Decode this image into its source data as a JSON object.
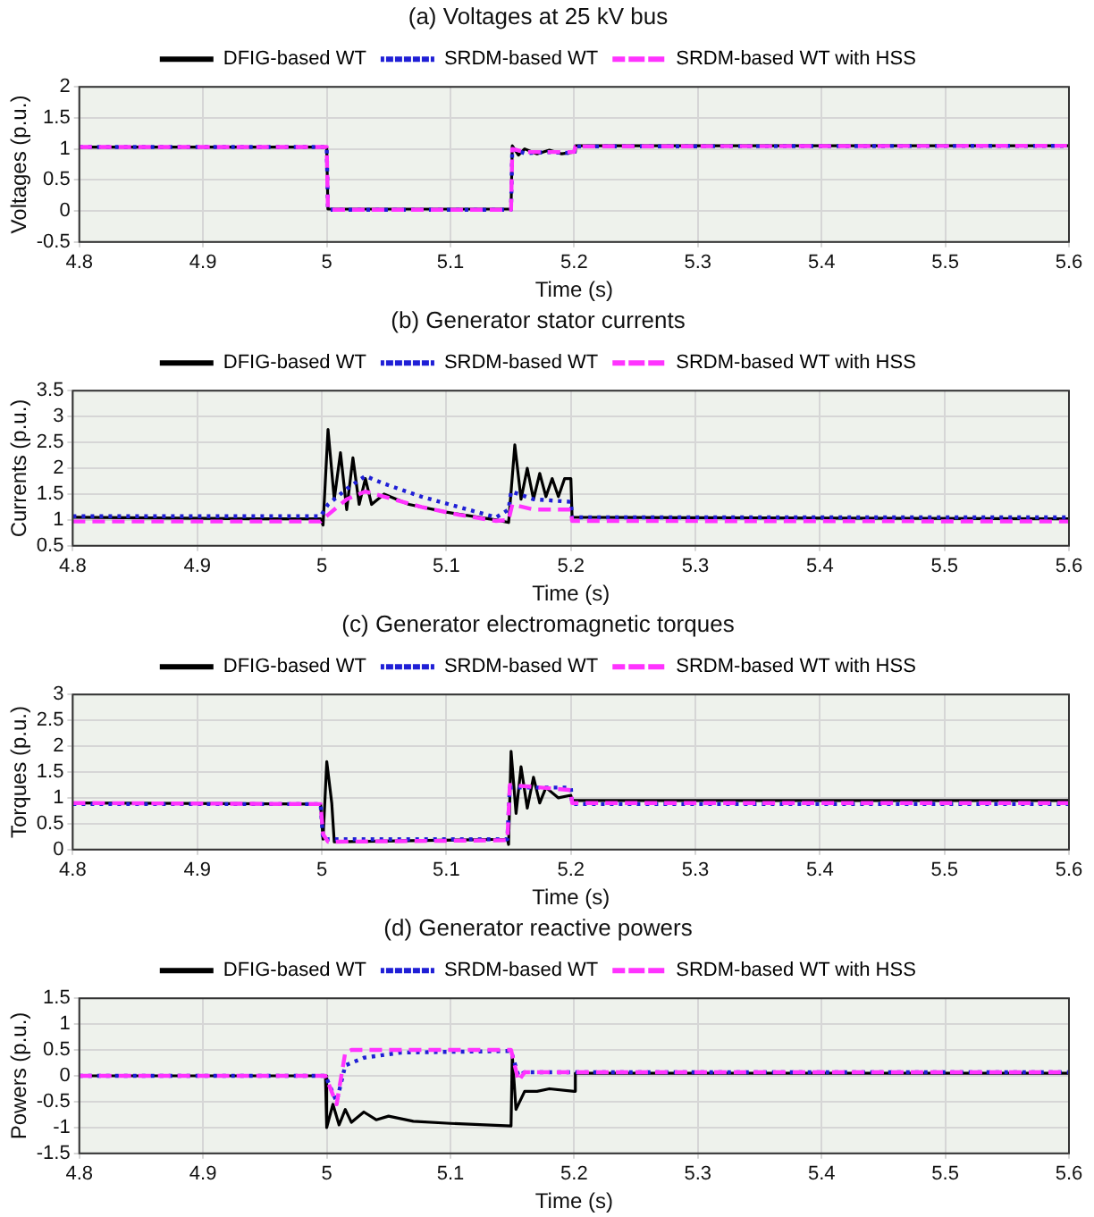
{
  "chart_data": [
    {
      "type": "line",
      "title": "(a) Voltages at 25 kV bus",
      "xlabel": "Time (s)",
      "ylabel": "Voltages (p.u.)",
      "xlim": [
        4.8,
        5.6
      ],
      "xticks": [
        4.8,
        4.9,
        5,
        5.1,
        5.2,
        5.3,
        5.4,
        5.5,
        5.6
      ],
      "ylim": [
        -0.5,
        2
      ],
      "yticks": [
        -0.5,
        0,
        0.5,
        1,
        1.5,
        2
      ],
      "grid": true,
      "legend": "top",
      "marker": "none",
      "series": [
        {
          "name": "DFIG-based WT",
          "color": "#000000",
          "line_style": "solid",
          "x": [
            4.8,
            5.0,
            5.001,
            5.149,
            5.15,
            5.155,
            5.16,
            5.17,
            5.18,
            5.19,
            5.2,
            5.201,
            5.6
          ],
          "values": [
            1.03,
            1.03,
            0.03,
            0.03,
            1.05,
            0.9,
            1.0,
            0.92,
            0.98,
            0.92,
            0.95,
            1.05,
            1.05
          ]
        },
        {
          "name": "SRDM-based WT",
          "color": "#1f1fd6",
          "line_style": "dotted",
          "x": [
            4.8,
            5.0,
            5.001,
            5.149,
            5.15,
            5.16,
            5.18,
            5.2,
            5.201,
            5.6
          ],
          "values": [
            1.03,
            1.03,
            0.02,
            0.02,
            1.0,
            0.93,
            0.95,
            0.93,
            1.04,
            1.05
          ]
        },
        {
          "name": "SRDM-based WT with HSS",
          "color": "#ff33ff",
          "line_style": "dashed",
          "x": [
            4.8,
            5.0,
            5.001,
            5.149,
            5.15,
            5.16,
            5.18,
            5.2,
            5.201,
            5.6
          ],
          "values": [
            1.03,
            1.03,
            0.02,
            0.02,
            1.0,
            0.95,
            0.95,
            0.95,
            1.04,
            1.05
          ]
        }
      ]
    },
    {
      "type": "line",
      "title": "(b) Generator stator currents",
      "xlabel": "Time (s)",
      "ylabel": "Currents (p.u.)",
      "xlim": [
        4.8,
        5.6
      ],
      "xticks": [
        4.8,
        4.9,
        5,
        5.1,
        5.2,
        5.3,
        5.4,
        5.5,
        5.6
      ],
      "ylim": [
        0.5,
        3.5
      ],
      "yticks": [
        0.5,
        1,
        1.5,
        2,
        2.5,
        3,
        3.5
      ],
      "grid": true,
      "legend": "top",
      "marker": "none",
      "series": [
        {
          "name": "DFIG-based WT",
          "color": "#000000",
          "line_style": "solid",
          "x": [
            4.8,
            4.95,
            4.999,
            5.001,
            5.005,
            5.01,
            5.015,
            5.02,
            5.025,
            5.03,
            5.035,
            5.04,
            5.05,
            5.07,
            5.1,
            5.14,
            5.15,
            5.155,
            5.16,
            5.165,
            5.17,
            5.175,
            5.18,
            5.185,
            5.19,
            5.195,
            5.2,
            5.201,
            5.6
          ],
          "values": [
            1.05,
            1.02,
            1.02,
            0.9,
            2.75,
            1.4,
            2.3,
            1.2,
            2.2,
            1.3,
            1.8,
            1.3,
            1.5,
            1.3,
            1.15,
            1.0,
            0.95,
            2.45,
            1.4,
            2.0,
            1.4,
            1.9,
            1.45,
            1.8,
            1.45,
            1.8,
            1.8,
            1.05,
            1.02
          ]
        },
        {
          "name": "SRDM-based WT",
          "color": "#1f1fd6",
          "line_style": "dotted",
          "x": [
            4.8,
            4.999,
            5.005,
            5.02,
            5.035,
            5.05,
            5.08,
            5.11,
            5.14,
            5.15,
            5.152,
            5.17,
            5.2,
            5.201,
            5.6
          ],
          "values": [
            1.07,
            1.07,
            1.3,
            1.6,
            1.85,
            1.7,
            1.45,
            1.25,
            1.05,
            1.2,
            1.55,
            1.4,
            1.35,
            1.05,
            1.05
          ]
        },
        {
          "name": "SRDM-based WT with HSS",
          "color": "#ff33ff",
          "line_style": "dashed",
          "x": [
            4.8,
            4.999,
            5.005,
            5.02,
            5.035,
            5.05,
            5.08,
            5.11,
            5.14,
            5.15,
            5.153,
            5.17,
            5.2,
            5.201,
            5.6
          ],
          "values": [
            0.97,
            0.97,
            1.1,
            1.4,
            1.55,
            1.45,
            1.25,
            1.1,
            0.98,
            1.0,
            1.3,
            1.2,
            1.2,
            0.98,
            0.97
          ]
        }
      ]
    },
    {
      "type": "line",
      "title": "(c) Generator electromagnetic torques",
      "xlabel": "Time (s)",
      "ylabel": "Torques (p.u.)",
      "xlim": [
        4.8,
        5.6
      ],
      "xticks": [
        4.8,
        4.9,
        5,
        5.1,
        5.2,
        5.3,
        5.4,
        5.5,
        5.6
      ],
      "ylim": [
        0,
        3
      ],
      "yticks": [
        0,
        0.5,
        1,
        1.5,
        2,
        2.5,
        3
      ],
      "grid": true,
      "legend": "top",
      "marker": "none",
      "series": [
        {
          "name": "DFIG-based WT",
          "color": "#000000",
          "line_style": "solid",
          "x": [
            4.8,
            4.999,
            5.001,
            5.004,
            5.008,
            5.01,
            5.149,
            5.15,
            5.152,
            5.156,
            5.16,
            5.165,
            5.17,
            5.175,
            5.18,
            5.19,
            5.2,
            5.201,
            5.6
          ],
          "values": [
            0.9,
            0.88,
            0.2,
            1.7,
            0.9,
            0.15,
            0.2,
            0.1,
            1.9,
            0.7,
            1.6,
            0.8,
            1.4,
            0.9,
            1.2,
            1.0,
            1.05,
            0.95,
            0.95
          ]
        },
        {
          "name": "SRDM-based WT",
          "color": "#1f1fd6",
          "line_style": "dotted",
          "x": [
            4.8,
            4.999,
            5.001,
            5.149,
            5.151,
            5.2,
            5.201,
            5.6
          ],
          "values": [
            0.88,
            0.88,
            0.2,
            0.2,
            1.2,
            1.2,
            0.88,
            0.88
          ]
        },
        {
          "name": "SRDM-based WT with HSS",
          "color": "#ff33ff",
          "line_style": "dashed",
          "x": [
            4.8,
            4.999,
            5.001,
            5.005,
            5.149,
            5.151,
            5.2,
            5.201,
            5.6
          ],
          "values": [
            0.9,
            0.88,
            0.3,
            0.15,
            0.18,
            1.25,
            1.15,
            0.9,
            0.9
          ]
        }
      ]
    },
    {
      "type": "line",
      "title": "(d) Generator reactive powers",
      "xlabel": "Time (s)",
      "ylabel": "Powers (p.u.)",
      "xlim": [
        4.8,
        5.6
      ],
      "xticks": [
        4.8,
        4.9,
        5,
        5.1,
        5.2,
        5.3,
        5.4,
        5.5,
        5.6
      ],
      "ylim": [
        -1.5,
        1.5
      ],
      "yticks": [
        -1.5,
        -1,
        -0.5,
        0,
        0.5,
        1,
        1.5
      ],
      "grid": true,
      "legend": "top",
      "marker": "none",
      "series": [
        {
          "name": "DFIG-based WT",
          "color": "#000000",
          "line_style": "solid",
          "x": [
            4.8,
            4.999,
            5.0,
            5.005,
            5.01,
            5.015,
            5.02,
            5.03,
            5.04,
            5.05,
            5.07,
            5.1,
            5.149,
            5.15,
            5.153,
            5.16,
            5.17,
            5.18,
            5.2,
            5.201,
            5.6
          ],
          "values": [
            0,
            0,
            -1.0,
            -0.55,
            -0.95,
            -0.65,
            -0.9,
            -0.7,
            -0.85,
            -0.78,
            -0.88,
            -0.92,
            -0.97,
            0.4,
            -0.65,
            -0.3,
            -0.3,
            -0.25,
            -0.3,
            0.05,
            0.05
          ]
        },
        {
          "name": "SRDM-based WT",
          "color": "#1f1fd6",
          "line_style": "dotted",
          "x": [
            4.8,
            4.999,
            5.008,
            5.015,
            5.03,
            5.06,
            5.149,
            5.155,
            5.16,
            5.6
          ],
          "values": [
            0,
            0,
            -0.5,
            0.2,
            0.35,
            0.45,
            0.48,
            0.0,
            0.07,
            0.07
          ]
        },
        {
          "name": "SRDM-based WT with HSS",
          "color": "#ff33ff",
          "line_style": "dashed",
          "x": [
            4.8,
            4.999,
            5.008,
            5.015,
            5.02,
            5.149,
            5.155,
            5.16,
            5.6
          ],
          "values": [
            0,
            0,
            -0.55,
            0.45,
            0.5,
            0.5,
            -0.1,
            0.07,
            0.07
          ]
        }
      ]
    }
  ]
}
